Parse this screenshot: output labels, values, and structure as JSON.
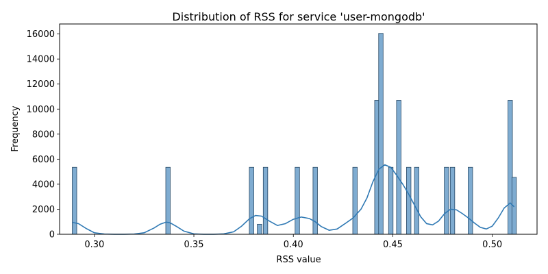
{
  "chart_data": {
    "type": "bar",
    "subtype": "histogram-with-kde",
    "title": "Distribution of RSS for service 'user-mongodb'",
    "xlabel": "RSS value",
    "ylabel": "Frequency",
    "xlim": [
      0.2825,
      0.5225
    ],
    "ylim": [
      0,
      16800
    ],
    "xticks": [
      0.3,
      0.35,
      0.4,
      0.45,
      0.5
    ],
    "xtick_labels": [
      "0.30",
      "0.35",
      "0.40",
      "0.45",
      "0.50"
    ],
    "yticks": [
      0,
      2000,
      4000,
      6000,
      8000,
      10000,
      12000,
      14000,
      16000
    ],
    "ytick_labels": [
      "0",
      "2000",
      "4000",
      "6000",
      "8000",
      "10000",
      "12000",
      "14000",
      "16000"
    ],
    "bin_width": 0.00225,
    "bars": [
      {
        "x": 0.29,
        "value": 5350
      },
      {
        "x": 0.337,
        "value": 5350
      },
      {
        "x": 0.379,
        "value": 5350
      },
      {
        "x": 0.383,
        "value": 800
      },
      {
        "x": 0.386,
        "value": 5350
      },
      {
        "x": 0.402,
        "value": 5350
      },
      {
        "x": 0.411,
        "value": 5350
      },
      {
        "x": 0.431,
        "value": 5350
      },
      {
        "x": 0.442,
        "value": 10700
      },
      {
        "x": 0.444,
        "value": 16050
      },
      {
        "x": 0.449,
        "value": 5350
      },
      {
        "x": 0.453,
        "value": 10700
      },
      {
        "x": 0.458,
        "value": 5350
      },
      {
        "x": 0.462,
        "value": 5350
      },
      {
        "x": 0.477,
        "value": 5350
      },
      {
        "x": 0.48,
        "value": 5350
      },
      {
        "x": 0.489,
        "value": 5350
      },
      {
        "x": 0.509,
        "value": 10700
      },
      {
        "x": 0.511,
        "value": 4550
      }
    ],
    "kde": {
      "x": [
        0.289,
        0.292,
        0.296,
        0.3,
        0.305,
        0.31,
        0.315,
        0.32,
        0.325,
        0.33,
        0.333,
        0.336,
        0.338,
        0.341,
        0.345,
        0.35,
        0.355,
        0.36,
        0.365,
        0.37,
        0.374,
        0.378,
        0.381,
        0.384,
        0.388,
        0.392,
        0.396,
        0.4,
        0.404,
        0.408,
        0.411,
        0.414,
        0.418,
        0.422,
        0.426,
        0.43,
        0.434,
        0.437,
        0.44,
        0.443,
        0.446,
        0.449,
        0.452,
        0.455,
        0.458,
        0.461,
        0.464,
        0.467,
        0.47,
        0.473,
        0.476,
        0.479,
        0.482,
        0.485,
        0.488,
        0.491,
        0.494,
        0.497,
        0.5,
        0.503,
        0.506,
        0.509,
        0.511
      ],
      "y": [
        950,
        850,
        450,
        120,
        20,
        0,
        0,
        20,
        120,
        500,
        800,
        970,
        920,
        650,
        250,
        30,
        0,
        0,
        30,
        200,
        650,
        1250,
        1500,
        1450,
        1050,
        700,
        850,
        1200,
        1380,
        1260,
        1000,
        620,
        320,
        420,
        850,
        1300,
        2000,
        2900,
        4200,
        5200,
        5550,
        5350,
        4700,
        4000,
        3200,
        2300,
        1400,
        850,
        750,
        1050,
        1650,
        2000,
        1950,
        1650,
        1300,
        900,
        550,
        420,
        650,
        1300,
        2100,
        2500,
        2200
      ]
    },
    "bar_color": "#7facd1",
    "bar_edge_color": "#2a4a66",
    "line_color": "#2f79b4",
    "grid": false,
    "legend": "none"
  }
}
